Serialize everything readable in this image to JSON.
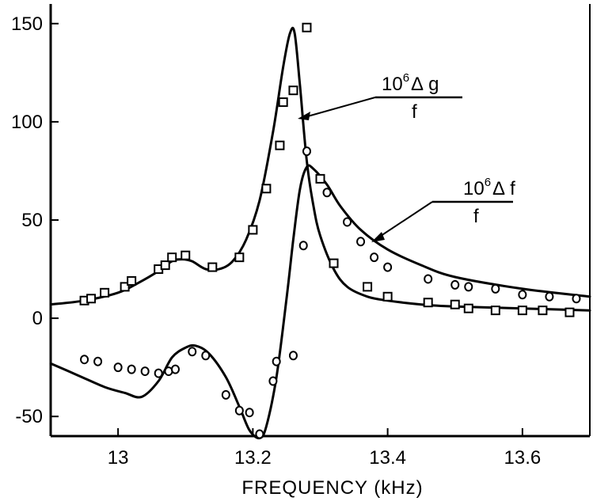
{
  "chart_data": {
    "type": "scatter",
    "title": "",
    "xlabel": "FREQUENCY (kHz)",
    "ylabel": "",
    "xlim": [
      12.9,
      13.7
    ],
    "ylim": [
      -60,
      160
    ],
    "x_ticks": [
      13,
      13.2,
      13.4,
      13.6
    ],
    "x_tick_labels": [
      "13",
      "13.2",
      "13.4",
      "13.6"
    ],
    "y_ticks": [
      -50,
      0,
      50,
      100,
      150
    ],
    "y_tick_labels": [
      "-50",
      "0",
      "50",
      "100",
      "150"
    ],
    "grid": false,
    "legend": "none",
    "annotations": [
      {
        "id": "dg",
        "numerator_base": "10",
        "exponent": "6",
        "symbol": "Δ",
        "var": "g",
        "denominator": "f",
        "points_to_series": "dg_curve"
      },
      {
        "id": "df",
        "numerator_base": "10",
        "exponent": "6",
        "symbol": "Δ",
        "var": "f",
        "denominator": "f",
        "points_to_series": "df_curve"
      }
    ],
    "series": [
      {
        "key": "dg_curve",
        "kind": "line",
        "x": [
          12.9,
          12.95,
          13.0,
          13.03,
          13.06,
          13.08,
          13.095,
          13.11,
          13.13,
          13.15,
          13.17,
          13.19,
          13.21,
          13.23,
          13.245,
          13.255,
          13.262,
          13.27,
          13.28,
          13.29,
          13.3,
          13.32,
          13.34,
          13.37,
          13.4,
          13.45,
          13.5,
          13.6,
          13.7
        ],
        "y": [
          7,
          9,
          13,
          18,
          24,
          29,
          30,
          29,
          25,
          25,
          29,
          40,
          60,
          95,
          128,
          145,
          145,
          118,
          80,
          57,
          42,
          25,
          16,
          11,
          9,
          7,
          6,
          5,
          4
        ]
      },
      {
        "key": "df_curve",
        "kind": "line",
        "x": [
          12.9,
          12.94,
          12.98,
          13.01,
          13.035,
          13.06,
          13.08,
          13.1,
          13.115,
          13.135,
          13.16,
          13.18,
          13.195,
          13.21,
          13.22,
          13.235,
          13.25,
          13.26,
          13.27,
          13.28,
          13.29,
          13.31,
          13.33,
          13.36,
          13.4,
          13.45,
          13.5,
          13.6,
          13.7
        ],
        "y": [
          -23,
          -29,
          -35,
          -38,
          -40,
          -32,
          -20,
          -15,
          -14,
          -18,
          -30,
          -45,
          -57,
          -61,
          -55,
          -30,
          10,
          40,
          66,
          77,
          76,
          68,
          57,
          45,
          35,
          27,
          21,
          15,
          11
        ]
      },
      {
        "key": "dg_points",
        "kind": "scatter",
        "marker": "square",
        "x": [
          12.95,
          12.96,
          12.98,
          13.01,
          13.02,
          13.06,
          13.07,
          13.08,
          13.1,
          13.14,
          13.18,
          13.2,
          13.22,
          13.24,
          13.245,
          13.26,
          13.28,
          13.3,
          13.32,
          13.37,
          13.4,
          13.46,
          13.5,
          13.52,
          13.56,
          13.6,
          13.63,
          13.67
        ],
        "y": [
          9,
          10,
          13,
          16,
          19,
          25,
          27,
          31,
          32,
          26,
          31,
          45,
          66,
          88,
          110,
          116,
          148,
          71,
          28,
          16,
          11,
          8,
          7,
          5,
          4,
          4,
          4,
          3
        ]
      },
      {
        "key": "df_points",
        "kind": "scatter",
        "marker": "circle",
        "x": [
          12.95,
          12.97,
          13.0,
          13.02,
          13.04,
          13.06,
          13.075,
          13.085,
          13.11,
          13.13,
          13.16,
          13.18,
          13.195,
          13.21,
          13.23,
          13.235,
          13.26,
          13.275,
          13.28,
          13.31,
          13.34,
          13.36,
          13.38,
          13.4,
          13.46,
          13.5,
          13.52,
          13.56,
          13.6,
          13.64,
          13.68
        ],
        "y": [
          -21,
          -22,
          -25,
          -26,
          -27,
          -28,
          -27,
          -26,
          -17,
          -19,
          -39,
          -47,
          -48,
          -59,
          -32,
          -22,
          -19,
          37,
          85,
          64,
          49,
          39,
          31,
          26,
          20,
          17,
          16,
          15,
          12,
          11,
          10
        ]
      }
    ]
  }
}
